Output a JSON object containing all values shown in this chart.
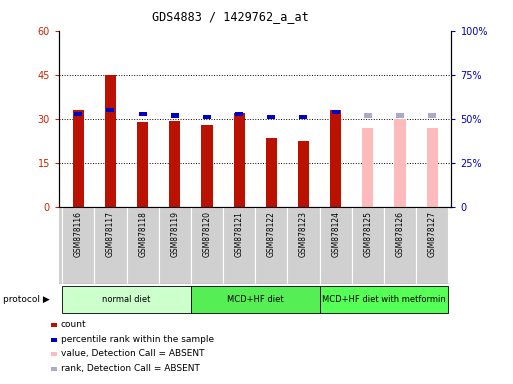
{
  "title": "GDS4883 / 1429762_a_at",
  "samples": [
    "GSM878116",
    "GSM878117",
    "GSM878118",
    "GSM878119",
    "GSM878120",
    "GSM878121",
    "GSM878122",
    "GSM878123",
    "GSM878124",
    "GSM878125",
    "GSM878126",
    "GSM878127"
  ],
  "count_values": [
    33,
    45,
    29,
    29.5,
    28,
    32,
    23.5,
    22.5,
    33,
    27,
    30,
    27
  ],
  "percentile_values": [
    53,
    55,
    53,
    52,
    51,
    53,
    51,
    51,
    54,
    52,
    52,
    52
  ],
  "absent_mask": [
    false,
    false,
    false,
    false,
    false,
    false,
    false,
    false,
    false,
    true,
    true,
    true
  ],
  "count_color_present": "#bb1100",
  "count_color_absent": "#ffbbbb",
  "rank_color_present": "#0000cc",
  "rank_color_absent": "#aaaacc",
  "ylim_left": [
    0,
    60
  ],
  "ylim_right": [
    0,
    100
  ],
  "yticks_left": [
    0,
    15,
    30,
    45,
    60
  ],
  "yticks_right": [
    0,
    25,
    50,
    75,
    100
  ],
  "ytick_labels_left": [
    "0",
    "15",
    "30",
    "45",
    "60"
  ],
  "ytick_labels_right": [
    "0",
    "25%",
    "50%",
    "75%",
    "100%"
  ],
  "protocol_groups": [
    {
      "label": "normal diet",
      "start": 0,
      "end": 4,
      "color": "#ccffcc"
    },
    {
      "label": "MCD+HF diet",
      "start": 4,
      "end": 8,
      "color": "#55ee55"
    },
    {
      "label": "MCD+HF diet with metformin",
      "start": 8,
      "end": 12,
      "color": "#55ff55"
    }
  ],
  "legend_items": [
    {
      "label": "count",
      "color": "#bb1100"
    },
    {
      "label": "percentile rank within the sample",
      "color": "#0000cc"
    },
    {
      "label": "value, Detection Call = ABSENT",
      "color": "#ffbbbb"
    },
    {
      "label": "rank, Detection Call = ABSENT",
      "color": "#aaaacc"
    }
  ],
  "bar_width": 0.35,
  "left_tick_color": "#cc2200",
  "right_tick_color": "#0000bb",
  "grid_color": "black",
  "grid_linestyle": "dotted",
  "grid_linewidth": 0.7,
  "sample_box_color": "#d0d0d0",
  "fig_width": 5.13,
  "fig_height": 3.84,
  "fig_dpi": 100
}
